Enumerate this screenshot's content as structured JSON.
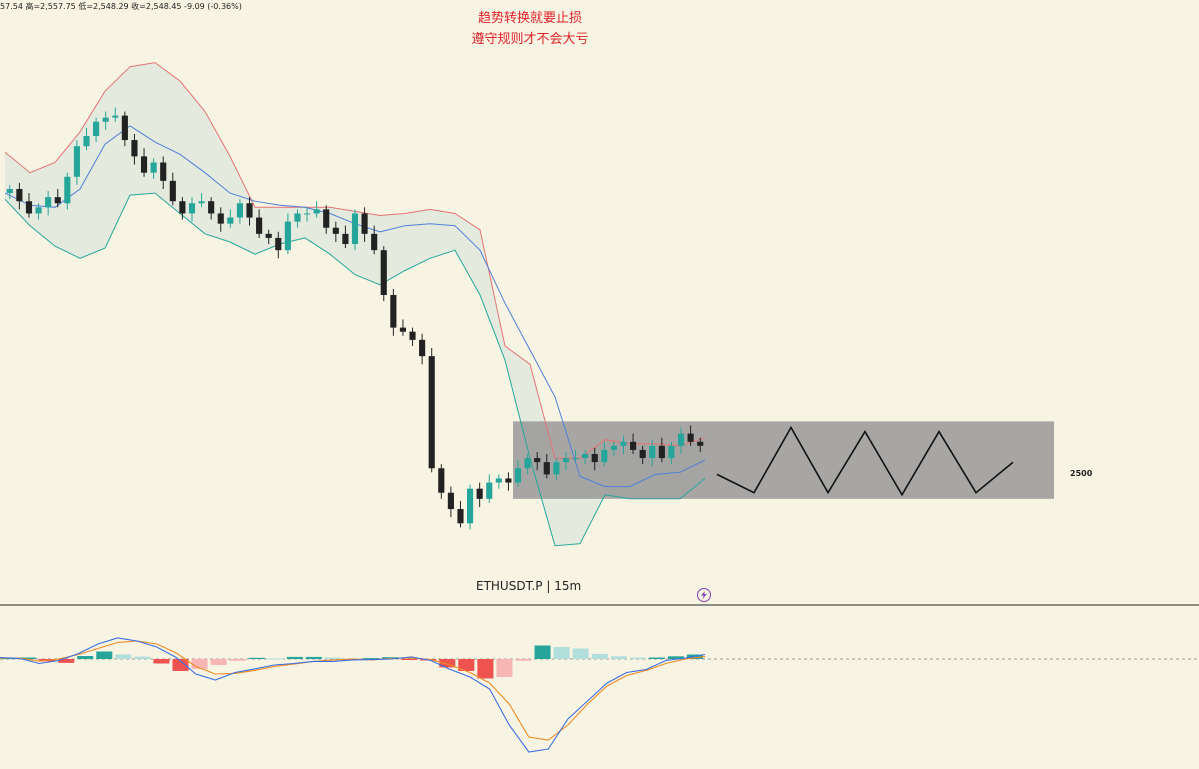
{
  "header": {
    "ohlc_text": "57.54 高=2,557.75 低=2,548.29 收=2,548.45 -9.09 (-0.36%)"
  },
  "annotations": {
    "line1": "趋势转换就要止损",
    "line2": "遵守规则才不会大亏"
  },
  "symbol": {
    "label": "ETHUSDT.P | 15m"
  },
  "price_marker": {
    "label": "2500"
  },
  "colors": {
    "background": "#f8f4e3",
    "candle_up": "#26a69a",
    "candle_down": "#222222",
    "bb_upper": "#e57373",
    "bb_lower": "#26a69a",
    "bb_basis": "#4f7fd8",
    "bb_fill": "#dfe9dc",
    "range_box": "#9b9b9b",
    "macd_line": "#3b6fe0",
    "signal_line": "#ef8a23",
    "hist_pos_strong": "#26a69a",
    "hist_pos_weak": "#b2dfdb",
    "hist_neg_strong": "#ef5350",
    "hist_neg_weak": "#f7b6b4",
    "annotation_text": "#e0222a"
  },
  "icons": {
    "realtime": "lightning-bolt-icon"
  },
  "chart_data": {
    "type": "candlestick",
    "symbol": "ETHUSDT.P",
    "interval": "15m",
    "price_range": [
      2470,
      2730
    ],
    "indicators": [
      "Bollinger Bands",
      "MACD"
    ],
    "range_box": {
      "low": 2500,
      "high": 2538
    },
    "projection_zigzag": [
      2512,
      2503,
      2535,
      2503,
      2533,
      2502,
      2533,
      2503,
      2518
    ],
    "bollinger": {
      "upper": [
        2670,
        2660,
        2665,
        2680,
        2700,
        2712,
        2714,
        2705,
        2690,
        2668,
        2643,
        2643,
        2643,
        2643,
        2641,
        2639,
        2640,
        2642,
        2640,
        2632,
        2575,
        2566,
        2520,
        2520,
        2529,
        2527,
        2527,
        2526,
        2530
      ],
      "basis": [
        2650,
        2644,
        2643,
        2652,
        2674,
        2683,
        2675,
        2669,
        2660,
        2650,
        2646,
        2644,
        2643,
        2640,
        2635,
        2631,
        2634,
        2635,
        2634,
        2622,
        2596,
        2573,
        2550,
        2511,
        2506,
        2506,
        2512,
        2513,
        2519
      ],
      "lower": [
        2647,
        2634,
        2624,
        2618,
        2623,
        2649,
        2650,
        2640,
        2630,
        2626,
        2620,
        2625,
        2628,
        2620,
        2610,
        2605,
        2612,
        2618,
        2622,
        2600,
        2568,
        2520,
        2477,
        2478,
        2502,
        2500,
        2500,
        2500,
        2510
      ]
    },
    "candles": {
      "open": [
        2650,
        2652,
        2646,
        2640,
        2643,
        2648,
        2645,
        2658,
        2673,
        2678,
        2685,
        2687,
        2688,
        2676,
        2668,
        2660,
        2665,
        2656,
        2646,
        2640,
        2645,
        2646,
        2640,
        2635,
        2638,
        2645,
        2638,
        2630,
        2628,
        2622,
        2636,
        2640,
        2640,
        2642,
        2633,
        2630,
        2625,
        2640,
        2630,
        2622,
        2600,
        2584,
        2582,
        2578,
        2570,
        2515,
        2503,
        2495,
        2488,
        2505,
        2500,
        2508,
        2510,
        2508,
        2515,
        2520,
        2518,
        2512,
        2518,
        2520,
        2520,
        2522,
        2518,
        2524,
        2526,
        2528,
        2524,
        2520,
        2526,
        2520,
        2526,
        2532,
        2528
      ],
      "close": [
        2652,
        2646,
        2640,
        2643,
        2648,
        2645,
        2658,
        2673,
        2678,
        2685,
        2687,
        2688,
        2676,
        2668,
        2660,
        2665,
        2656,
        2646,
        2640,
        2645,
        2646,
        2640,
        2635,
        2638,
        2645,
        2638,
        2630,
        2628,
        2622,
        2636,
        2640,
        2640,
        2642,
        2633,
        2630,
        2625,
        2640,
        2630,
        2622,
        2600,
        2584,
        2582,
        2578,
        2570,
        2515,
        2503,
        2495,
        2488,
        2505,
        2500,
        2508,
        2510,
        2508,
        2515,
        2520,
        2518,
        2512,
        2518,
        2520,
        2520,
        2522,
        2518,
        2524,
        2526,
        2528,
        2524,
        2520,
        2526,
        2520,
        2526,
        2532,
        2528,
        2526
      ]
    },
    "macd": {
      "macd_line": [
        0.5,
        0.2,
        -1.5,
        -0.5,
        1.8,
        5,
        7,
        6,
        4,
        0.5,
        -5,
        -7,
        -4.5,
        -3.3,
        -2,
        -1.5,
        -0.8,
        -0.8,
        -0.3,
        -0.2,
        0,
        0.7,
        -0.5,
        -3.5,
        -6,
        -10,
        -22,
        -31,
        -30,
        -20,
        -14,
        -8,
        -4.5,
        -3.5,
        -0.5,
        0.3,
        1.5
      ],
      "signal_line": [
        0.3,
        0.3,
        -0.7,
        0,
        1.5,
        3.5,
        5.5,
        6,
        5,
        2,
        -2.5,
        -5,
        -4.8,
        -3.8,
        -2.5,
        -1.7,
        -0.8,
        -0.3,
        0,
        -0.3,
        0.2,
        0.3,
        -0.2,
        -2,
        -4.5,
        -8,
        -15,
        -26,
        -27,
        -22,
        -15,
        -9,
        -5.5,
        -3.8,
        -1.5,
        0,
        0.8
      ],
      "histogram": [
        0.3,
        0.5,
        -0.8,
        -1.3,
        1,
        2.5,
        1.5,
        0.8,
        -1.5,
        -4,
        -3.3,
        -2,
        -0.6,
        0.4,
        0.2,
        0.7,
        0.7,
        0.5,
        0,
        0.3,
        0.6,
        -0.3,
        -0.5,
        -2.8,
        -4,
        -6.5,
        -6,
        -0.6,
        4.5,
        4,
        3.5,
        1.7,
        0.9,
        0.5,
        0.5,
        0.9,
        1.5
      ]
    }
  }
}
